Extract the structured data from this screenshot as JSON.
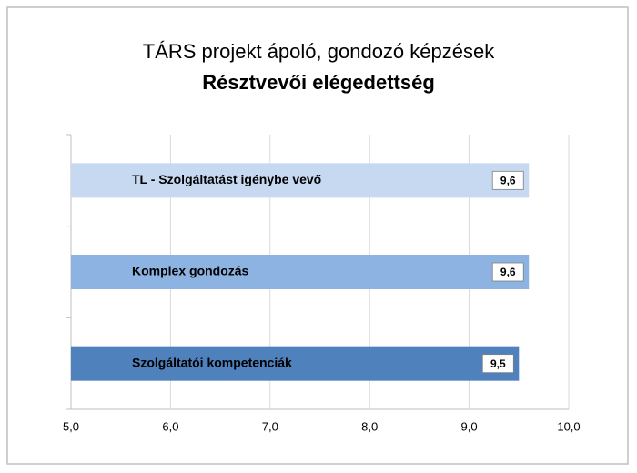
{
  "chart_data": {
    "type": "hbar",
    "title": "TÁRS projekt ápoló, gondozó képzések",
    "subtitle": "Résztvevői elégedettség",
    "categories": [
      "TL - Szolgáltatást igénybe vevő",
      "Komplex gondozás",
      "Szolgáltatói kompetenciák"
    ],
    "values": [
      9.6,
      9.6,
      9.5
    ],
    "value_labels": [
      "9,6",
      "9,6",
      "9,5"
    ],
    "colors": [
      "#c6d9f1",
      "#8db3e2",
      "#4f81bd"
    ],
    "xlim": [
      5,
      10
    ],
    "xticks": [
      {
        "value": 5,
        "label": "5,0"
      },
      {
        "value": 6,
        "label": "6,0"
      },
      {
        "value": 7,
        "label": "7,0"
      },
      {
        "value": 8,
        "label": "8,0"
      },
      {
        "value": 9,
        "label": "9,0"
      },
      {
        "value": 10,
        "label": "10,0"
      }
    ],
    "grid": true
  }
}
